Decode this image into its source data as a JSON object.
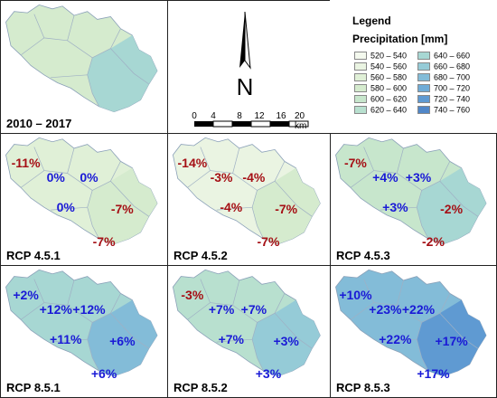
{
  "legend": {
    "title": "Legend",
    "subtitle": "Precipitation [mm]",
    "classes": [
      {
        "label": "520 – 540",
        "color": "#f4f9ee"
      },
      {
        "label": "540 – 560",
        "color": "#eaf4e2"
      },
      {
        "label": "560 – 580",
        "color": "#e0f0d7"
      },
      {
        "label": "580 – 600",
        "color": "#d5ebce"
      },
      {
        "label": "600 – 620",
        "color": "#c7e6cc"
      },
      {
        "label": "620 – 640",
        "color": "#b8e0cf"
      },
      {
        "label": "640 – 660",
        "color": "#a7d7d3"
      },
      {
        "label": "660 – 680",
        "color": "#95cbd7"
      },
      {
        "label": "680 – 700",
        "color": "#83bcd8"
      },
      {
        "label": "700 – 720",
        "color": "#70acd7"
      },
      {
        "label": "720 – 740",
        "color": "#5f9ad2"
      },
      {
        "label": "740 – 760",
        "color": "#5187c8"
      }
    ]
  },
  "north_arrow": {
    "letter": "N"
  },
  "scale_bar": {
    "ticks": [
      "0",
      "4",
      "8",
      "12",
      "16",
      "20 km"
    ]
  },
  "panels": [
    {
      "label": "2010 – 2017",
      "base_color": "#d5ebce",
      "east_color": "#a7d7d3",
      "values": []
    },
    {
      "label": "RCP 4.5.1",
      "base_color": "#e0f0d7",
      "east_color": "#d5ebce",
      "values": [
        {
          "text": "-11%",
          "sign": "neg"
        },
        {
          "text": "0%",
          "sign": "pos"
        },
        {
          "text": "0%",
          "sign": "pos"
        },
        {
          "text": "0%",
          "sign": "pos"
        },
        {
          "text": "-7%",
          "sign": "neg"
        },
        {
          "text": "-7%",
          "sign": "neg"
        }
      ]
    },
    {
      "label": "RCP 4.5.2",
      "base_color": "#eaf4e2",
      "east_color": "#d5ebce",
      "values": [
        {
          "text": "-14%",
          "sign": "neg"
        },
        {
          "text": "-3%",
          "sign": "neg"
        },
        {
          "text": "-4%",
          "sign": "neg"
        },
        {
          "text": "-4%",
          "sign": "neg"
        },
        {
          "text": "-7%",
          "sign": "neg"
        },
        {
          "text": "-7%",
          "sign": "neg"
        }
      ]
    },
    {
      "label": "RCP 4.5.3",
      "base_color": "#c7e6cc",
      "east_color": "#a7d7d3",
      "values": [
        {
          "text": "-7%",
          "sign": "neg"
        },
        {
          "text": "+4%",
          "sign": "pos"
        },
        {
          "text": "+3%",
          "sign": "pos"
        },
        {
          "text": "+3%",
          "sign": "pos"
        },
        {
          "text": "-2%",
          "sign": "neg"
        },
        {
          "text": "-2%",
          "sign": "neg"
        }
      ]
    },
    {
      "label": "RCP 8.5.1",
      "base_color": "#a7d7d3",
      "east_color": "#83bcd8",
      "values": [
        {
          "text": "+2%",
          "sign": "pos"
        },
        {
          "text": "+12%",
          "sign": "pos"
        },
        {
          "text": "+12%",
          "sign": "pos"
        },
        {
          "text": "+11%",
          "sign": "pos"
        },
        {
          "text": "+6%",
          "sign": "pos"
        },
        {
          "text": "+6%",
          "sign": "pos"
        }
      ]
    },
    {
      "label": "RCP 8.5.2",
      "base_color": "#b8e0cf",
      "east_color": "#95cbd7",
      "values": [
        {
          "text": "-3%",
          "sign": "neg"
        },
        {
          "text": "+7%",
          "sign": "pos"
        },
        {
          "text": "+7%",
          "sign": "pos"
        },
        {
          "text": "+7%",
          "sign": "pos"
        },
        {
          "text": "+3%",
          "sign": "pos"
        },
        {
          "text": "+3%",
          "sign": "pos"
        }
      ]
    },
    {
      "label": "RCP 8.5.3",
      "base_color": "#83bcd8",
      "east_color": "#5f9ad2",
      "values": [
        {
          "text": "+10%",
          "sign": "pos"
        },
        {
          "text": "+23%",
          "sign": "pos"
        },
        {
          "text": "+22%",
          "sign": "pos"
        },
        {
          "text": "+22%",
          "sign": "pos"
        },
        {
          "text": "+17%",
          "sign": "pos"
        },
        {
          "text": "+17%",
          "sign": "pos"
        }
      ]
    }
  ]
}
